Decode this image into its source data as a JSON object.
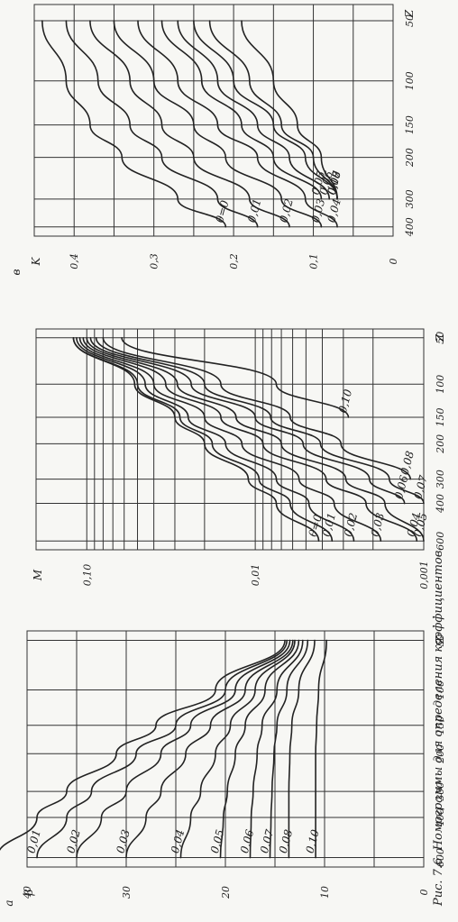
{
  "caption": "Рис. 7.6. Номограммы для определения коэффициентов",
  "chart_data": [
    {
      "id": "a",
      "type": "line",
      "panel_label": "а",
      "ylabel": "β",
      "xlabel": "Z",
      "x_ticks": [
        "50",
        "100",
        "150",
        "200",
        "300",
        "400",
        "600"
      ],
      "y_ticks": [
        "0",
        "10",
        "20",
        "30",
        "40"
      ],
      "ylim": [
        0,
        40
      ],
      "series": [
        {
          "name": "θ=0",
          "x": [
            50,
            100,
            150,
            200,
            300,
            400,
            600
          ],
          "y": [
            14,
            21,
            27,
            31,
            36,
            39,
            43
          ]
        },
        {
          "name": "0,01",
          "x": [
            50,
            100,
            150,
            200,
            300,
            400,
            600
          ],
          "y": [
            13.8,
            20,
            25,
            29,
            33.5,
            36,
            39
          ]
        },
        {
          "name": "0,02",
          "x": [
            50,
            100,
            150,
            200,
            300,
            400,
            600
          ],
          "y": [
            13.5,
            19,
            23.5,
            26.5,
            30,
            32.5,
            35
          ]
        },
        {
          "name": "0,03",
          "x": [
            50,
            100,
            150,
            200,
            300,
            400,
            600
          ],
          "y": [
            13.2,
            18,
            21.5,
            24,
            26.5,
            28,
            30
          ]
        },
        {
          "name": "0,04",
          "x": [
            50,
            100,
            150,
            200,
            300,
            400,
            600
          ],
          "y": [
            13,
            17,
            19.5,
            21,
            22.5,
            23.5,
            24.5
          ]
        },
        {
          "name": "0,05",
          "x": [
            50,
            100,
            150,
            200,
            300,
            400,
            600
          ],
          "y": [
            12.6,
            16,
            18,
            19,
            19.8,
            20.2,
            20.5
          ]
        },
        {
          "name": "0,06",
          "x": [
            50,
            100,
            150,
            200,
            300,
            400,
            600
          ],
          "y": [
            12.2,
            14.8,
            16.3,
            16.8,
            17.2,
            17.4,
            17.5
          ]
        },
        {
          "name": "0,07",
          "x": [
            50,
            100,
            150,
            200,
            300,
            400,
            600
          ],
          "y": [
            11.7,
            13.8,
            14.8,
            15.1,
            15.3,
            15.4,
            15.5
          ]
        },
        {
          "name": "0,08",
          "x": [
            50,
            100,
            150,
            200,
            300,
            400,
            600
          ],
          "y": [
            11,
            12.6,
            13.3,
            13.5,
            13.6,
            13.6,
            13.6
          ]
        },
        {
          "name": "0,10",
          "x": [
            50,
            100,
            150,
            200,
            300,
            400,
            600
          ],
          "y": [
            9.8,
            10.6,
            10.8,
            10.9,
            10.9,
            10.9,
            10.9
          ]
        }
      ]
    },
    {
      "id": "b",
      "type": "line",
      "ylabel": "M",
      "xlabel": "Z",
      "x_ticks": [
        "50",
        "100",
        "150",
        "200",
        "300",
        "400",
        "600"
      ],
      "y_ticks": [
        "0,001",
        "0,01",
        "0,10"
      ],
      "y_scale": "log",
      "ylim": [
        0.001,
        0.2
      ],
      "series": [
        {
          "name": "θ=0",
          "x": [
            50,
            100,
            150,
            200,
            300,
            400,
            600
          ],
          "y": [
            0.12,
            0.052,
            0.03,
            0.02,
            0.011,
            0.0075,
            0.0042
          ]
        },
        {
          "name": "0,01",
          "x": [
            50,
            100,
            150,
            200,
            300,
            400,
            600
          ],
          "y": [
            0.12,
            0.05,
            0.028,
            0.018,
            0.0095,
            0.0062,
            0.0035
          ]
        },
        {
          "name": "0,02",
          "x": [
            50,
            100,
            150,
            200,
            300,
            400,
            600
          ],
          "y": [
            0.115,
            0.045,
            0.025,
            0.015,
            0.0075,
            0.0048,
            0.0026
          ]
        },
        {
          "name": "0,03",
          "x": [
            50,
            100,
            150,
            200,
            300,
            400,
            600
          ],
          "y": [
            0.11,
            0.04,
            0.02,
            0.012,
            0.0055,
            0.0034,
            0.0018
          ]
        },
        {
          "name": "0,04",
          "x": [
            50,
            100,
            150,
            200,
            300,
            400,
            600
          ],
          "y": [
            0.105,
            0.034,
            0.016,
            0.009,
            0.0038,
            0.0022,
            0.0011
          ]
        },
        {
          "name": "0,05",
          "x": [
            50,
            100,
            150,
            200,
            300,
            400,
            600
          ],
          "y": [
            0.1,
            0.029,
            0.013,
            0.007,
            0.0029,
            0.0017,
            0.001
          ]
        },
        {
          "name": "0,06",
          "x": [
            50,
            100,
            150,
            200,
            300,
            400
          ],
          "y": [
            0.095,
            0.024,
            0.01,
            0.0052,
            0.0021,
            0.0013
          ]
        },
        {
          "name": "0,07",
          "x": [
            50,
            100,
            150,
            200,
            300,
            400
          ],
          "y": [
            0.088,
            0.02,
            0.0081,
            0.0041,
            0.0016,
            0.001
          ]
        },
        {
          "name": "0,08",
          "x": [
            50,
            100,
            150,
            200,
            300
          ],
          "y": [
            0.08,
            0.016,
            0.0062,
            0.0031,
            0.0012
          ]
        },
        {
          "name": "0,10",
          "x": [
            50,
            100,
            150
          ],
          "y": [
            0.062,
            0.0075,
            0.0028
          ]
        }
      ]
    },
    {
      "id": "c",
      "type": "line",
      "panel_label": "в",
      "ylabel": "K",
      "xlabel": "Z",
      "x_ticks": [
        "50",
        "100",
        "150",
        "200",
        "300",
        "400"
      ],
      "y_ticks": [
        "0",
        "0,1",
        "0,2",
        "0,3",
        "0,4"
      ],
      "ylim": [
        0,
        0.45
      ],
      "series": [
        {
          "name": "θ=0",
          "x": [
            50,
            100,
            150,
            200,
            300,
            400
          ],
          "y": [
            0.44,
            0.41,
            0.38,
            0.34,
            0.27,
            0.21
          ]
        },
        {
          "name": "0,01",
          "x": [
            50,
            100,
            150,
            200,
            300,
            400
          ],
          "y": [
            0.41,
            0.37,
            0.33,
            0.29,
            0.22,
            0.17
          ]
        },
        {
          "name": "0,02",
          "x": [
            50,
            100,
            150,
            200,
            300,
            400
          ],
          "y": [
            0.38,
            0.33,
            0.29,
            0.25,
            0.18,
            0.13
          ]
        },
        {
          "name": "0,03",
          "x": [
            50,
            100,
            150,
            200,
            300,
            400
          ],
          "y": [
            0.35,
            0.3,
            0.25,
            0.21,
            0.14,
            0.09
          ]
        },
        {
          "name": "0,04",
          "x": [
            50,
            100,
            150,
            200,
            300,
            400
          ],
          "y": [
            0.32,
            0.27,
            0.22,
            0.17,
            0.11,
            0.07
          ]
        },
        {
          "name": "0,05",
          "x": [
            50,
            100,
            150,
            200,
            300
          ],
          "y": [
            0.29,
            0.24,
            0.19,
            0.15,
            0.09
          ]
        },
        {
          "name": "0,06",
          "x": [
            50,
            100,
            150,
            200,
            300
          ],
          "y": [
            0.27,
            0.22,
            0.17,
            0.13,
            0.08
          ]
        },
        {
          "name": "0,07",
          "x": [
            50,
            100,
            150,
            200,
            300
          ],
          "y": [
            0.25,
            0.2,
            0.15,
            0.11,
            0.07
          ]
        },
        {
          "name": "0,08",
          "x": [
            50,
            100,
            150,
            200,
            300
          ],
          "y": [
            0.23,
            0.18,
            0.14,
            0.1,
            0.07
          ]
        },
        {
          "name": "0,10",
          "x": [
            50,
            100,
            150,
            200,
            300
          ],
          "y": [
            0.19,
            0.15,
            0.12,
            0.09,
            0.07
          ]
        }
      ]
    }
  ]
}
